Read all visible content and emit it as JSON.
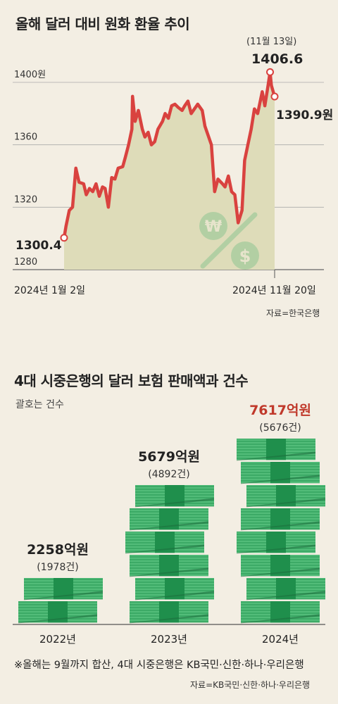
{
  "chart1": {
    "title": "올해 달러 대비 원화 환율 추이",
    "source": "자료=한국은행",
    "start_label": "2024년 1월 2일",
    "end_label": "2024년 11월 20일",
    "start_value_label": "1300.4",
    "peak_date_label": "(11월 13일)",
    "peak_value_label": "1406.6",
    "end_value_label": "1390.9원"
  },
  "chart2": {
    "title": "4대 시중은행의 달러 보험 판매액과 건수",
    "subtitle": "괄호는 건수"
  },
  "footnote": "※올해는 9월까지 합산, 4대 시중은행은 KB국민·신한·하나·우리은행",
  "source2": "자료=KB국민·신한·하나·우리은행",
  "colors": {
    "line": "#d9423f",
    "area": "#dedcb9",
    "money": "#3aaa66",
    "money_dark": "#1f8a4a",
    "highlight": "#c0392b"
  },
  "chart_data": [
    {
      "type": "line",
      "title": "올해 달러 대비 원화 환율 추이",
      "ylabel": "",
      "ylim": [
        1280,
        1420
      ],
      "yticks": [
        1280,
        1320,
        1360,
        1400
      ],
      "ytick_labels": [
        "1280",
        "1320",
        "1360",
        "1400원"
      ],
      "x": [
        "2024-01-02",
        "2024-01-05",
        "2024-01-10",
        "2024-01-15",
        "2024-01-20",
        "2024-01-25",
        "2024-02-01",
        "2024-02-05",
        "2024-02-10",
        "2024-02-15",
        "2024-02-20",
        "2024-02-25",
        "2024-03-01",
        "2024-03-05",
        "2024-03-10",
        "2024-03-15",
        "2024-03-20",
        "2024-03-25",
        "2024-04-01",
        "2024-04-05",
        "2024-04-10",
        "2024-04-15",
        "2024-04-16",
        "2024-04-20",
        "2024-04-25",
        "2024-05-01",
        "2024-05-05",
        "2024-05-10",
        "2024-05-15",
        "2024-05-20",
        "2024-05-25",
        "2024-06-01",
        "2024-06-05",
        "2024-06-10",
        "2024-06-15",
        "2024-06-20",
        "2024-06-25",
        "2024-07-01",
        "2024-07-05",
        "2024-07-10",
        "2024-07-15",
        "2024-07-20",
        "2024-07-25",
        "2024-08-01",
        "2024-08-05",
        "2024-08-10",
        "2024-08-15",
        "2024-08-20",
        "2024-08-25",
        "2024-09-01",
        "2024-09-05",
        "2024-09-10",
        "2024-09-15",
        "2024-09-20",
        "2024-09-25",
        "2024-10-01",
        "2024-10-05",
        "2024-10-10",
        "2024-10-15",
        "2024-10-20",
        "2024-10-25",
        "2024-11-01",
        "2024-11-05",
        "2024-11-10",
        "2024-11-13",
        "2024-11-15",
        "2024-11-20"
      ],
      "values": [
        1300.4,
        1308,
        1318,
        1320,
        1345,
        1336,
        1335,
        1328,
        1332,
        1330,
        1335,
        1327,
        1333,
        1332,
        1320,
        1339,
        1338,
        1345,
        1346,
        1352,
        1360,
        1370,
        1391,
        1375,
        1382,
        1370,
        1365,
        1368,
        1360,
        1362,
        1370,
        1375,
        1380,
        1377,
        1385,
        1386,
        1384,
        1382,
        1385,
        1388,
        1380,
        1383,
        1386,
        1382,
        1372,
        1366,
        1360,
        1330,
        1338,
        1335,
        1333,
        1340,
        1330,
        1328,
        1310,
        1318,
        1350,
        1360,
        1370,
        1383,
        1380,
        1394,
        1385,
        1398,
        1406.6,
        1398,
        1390.9
      ],
      "annotations": [
        {
          "label": "1300.4",
          "x": "2024-01-02",
          "y": 1300.4
        },
        {
          "label": "(11월 13일) 1406.6",
          "x": "2024-11-13",
          "y": 1406.6
        },
        {
          "label": "1390.9원",
          "x": "2024-11-20",
          "y": 1390.9
        }
      ]
    },
    {
      "type": "bar",
      "title": "4대 시중은행의 달러 보험 판매액과 건수",
      "categories": [
        "2022년",
        "2023년",
        "2024년"
      ],
      "series": [
        {
          "name": "판매액(억원)",
          "values": [
            2258,
            5679,
            7617
          ]
        },
        {
          "name": "건수",
          "values": [
            1978,
            4892,
            5676
          ]
        }
      ],
      "value_labels": [
        "2258억원",
        "5679억원",
        "7617억원"
      ],
      "count_labels": [
        "(1978건)",
        "(4892건)",
        "(5676건)"
      ]
    }
  ]
}
